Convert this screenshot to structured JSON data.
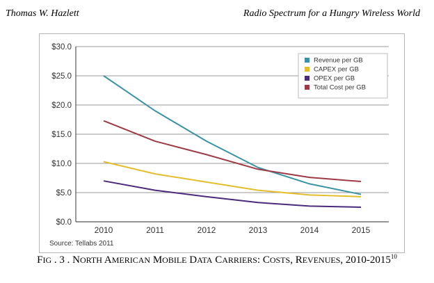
{
  "header": {
    "author": "Thomas W. Hazlett",
    "title": "Radio Spectrum for a Hungry Wireless World"
  },
  "caption": {
    "fig": "F",
    "fig_sc": "IG",
    "num": ". 3 .",
    "w1": "N",
    "w1_sc": "ORTH",
    "w2": "A",
    "w2_sc": "MERICAN",
    "w3": "M",
    "w3_sc": "OBILE",
    "w4": "D",
    "w4_sc": "ATA",
    "w5": "C",
    "w5_sc": "ARRIERS",
    "w6": ": C",
    "w6_sc": "OSTS",
    "w7": ", R",
    "w7_sc": "EVENUES",
    "years": ", 2010-2015",
    "footnote": "10"
  },
  "chart_data": {
    "type": "line",
    "title": "",
    "xlabel": "",
    "ylabel": "",
    "categories": [
      "2010",
      "2011",
      "2012",
      "2013",
      "2014",
      "2015"
    ],
    "y_ticks": [
      "$0.0",
      "$5.0",
      "$10.0",
      "$15.0",
      "$20.0",
      "$25.0",
      "$30.0"
    ],
    "ylim": [
      0,
      30
    ],
    "grid": true,
    "legend_position": "top-right",
    "source": "Source: Tellabs 2011",
    "series": [
      {
        "name": "Revenue per GB",
        "color": "#3a93a4",
        "values": [
          25.0,
          19.0,
          13.8,
          9.3,
          6.5,
          4.7
        ]
      },
      {
        "name": "CAPEX per GB",
        "color": "#e3be2a",
        "values": [
          10.3,
          8.2,
          6.8,
          5.4,
          4.6,
          4.3
        ]
      },
      {
        "name": "OPEX per GB",
        "color": "#4b2a7c",
        "values": [
          7.0,
          5.4,
          4.3,
          3.3,
          2.7,
          2.5
        ]
      },
      {
        "name": "Total Cost per GB",
        "color": "#9e3a44",
        "values": [
          17.3,
          13.8,
          11.5,
          9.0,
          7.6,
          6.9
        ]
      }
    ]
  }
}
